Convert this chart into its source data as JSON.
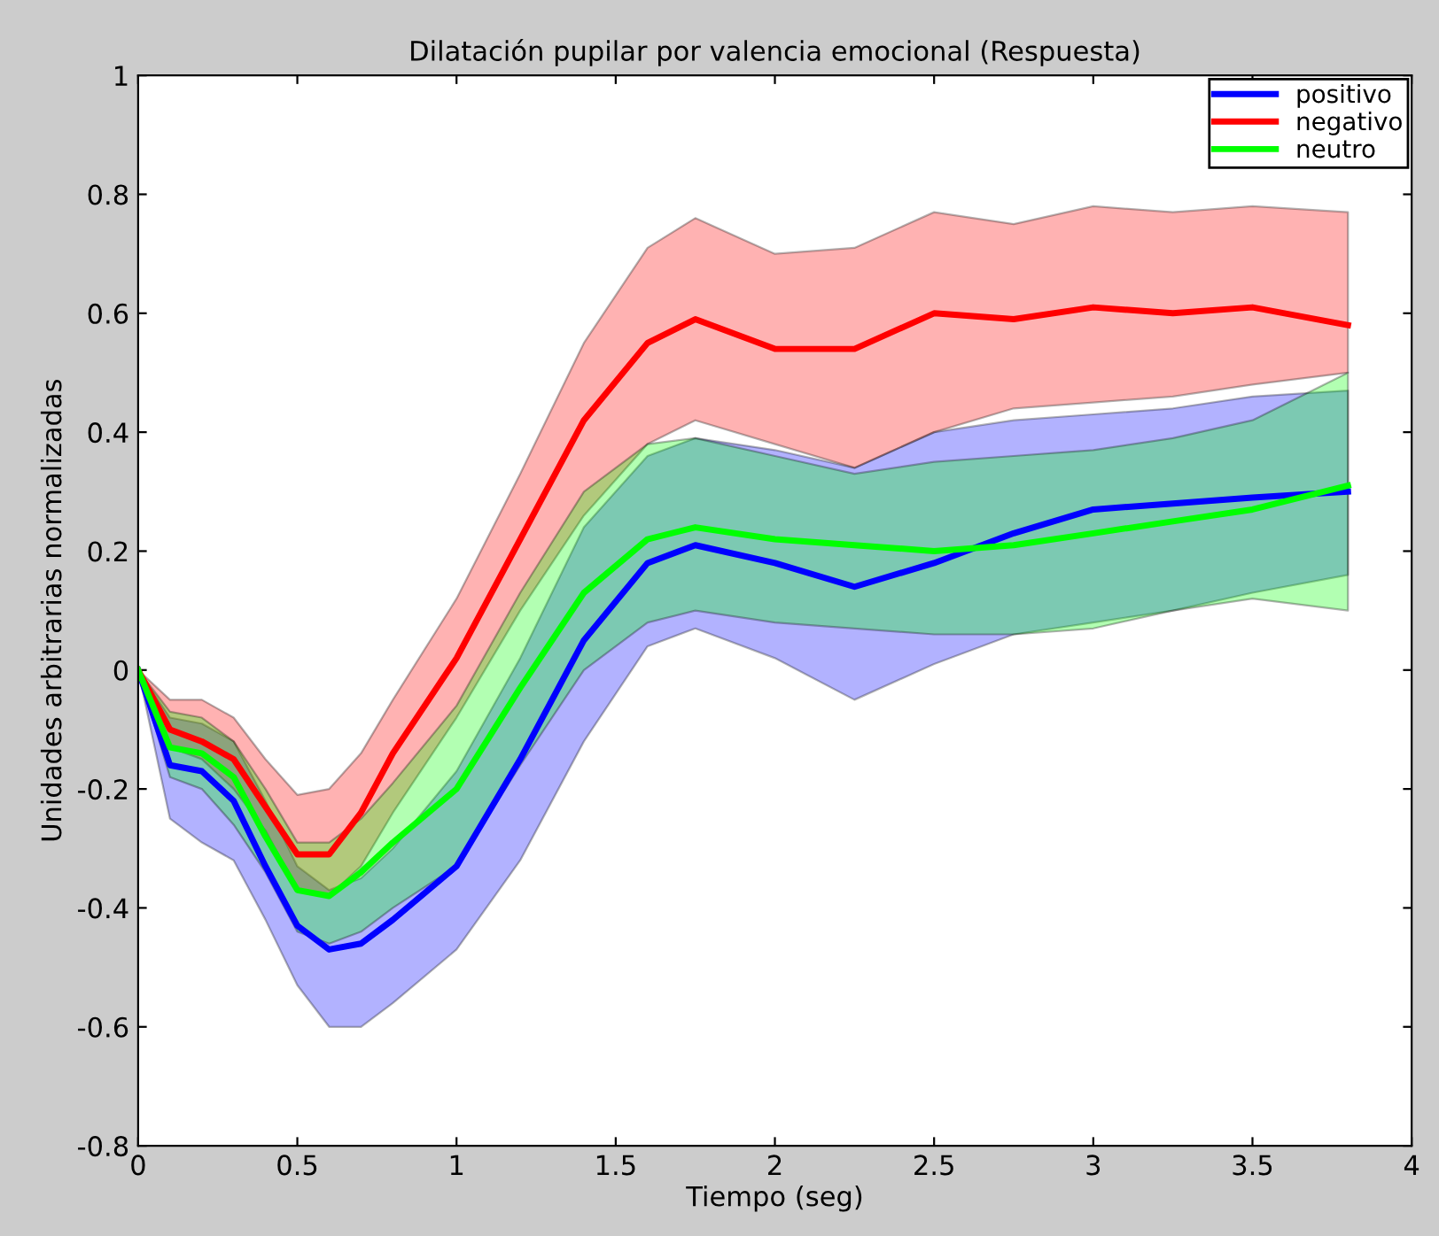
{
  "chart_data": {
    "type": "line",
    "title": "Dilatación pupilar por valencia emocional (Respuesta)",
    "xlabel": "Tiempo (seg)",
    "ylabel": "Unidades arbitrarias normalizadas",
    "x": [
      0,
      0.1,
      0.2,
      0.3,
      0.4,
      0.5,
      0.6,
      0.7,
      0.8,
      1.0,
      1.2,
      1.4,
      1.6,
      1.75,
      2.0,
      2.25,
      2.5,
      2.75,
      3.0,
      3.25,
      3.5,
      3.8
    ],
    "series": [
      {
        "name": "positivo",
        "color": "#0000ff",
        "values": [
          0,
          -0.16,
          -0.17,
          -0.22,
          -0.33,
          -0.43,
          -0.47,
          -0.46,
          -0.42,
          -0.33,
          -0.15,
          0.05,
          0.18,
          0.21,
          0.18,
          0.14,
          0.18,
          0.23,
          0.27,
          0.28,
          0.29,
          0.3
        ],
        "upper": [
          0,
          -0.08,
          -0.09,
          -0.12,
          -0.22,
          -0.33,
          -0.37,
          -0.35,
          -0.3,
          -0.17,
          0.02,
          0.24,
          0.36,
          0.39,
          0.37,
          0.34,
          0.4,
          0.42,
          0.43,
          0.44,
          0.46,
          0.47
        ],
        "lower": [
          0,
          -0.25,
          -0.29,
          -0.32,
          -0.42,
          -0.53,
          -0.6,
          -0.6,
          -0.56,
          -0.47,
          -0.32,
          -0.12,
          0.04,
          0.07,
          0.02,
          -0.05,
          0.01,
          0.06,
          0.08,
          0.1,
          0.13,
          0.16
        ]
      },
      {
        "name": "negativo",
        "color": "#ff0000",
        "values": [
          0,
          -0.1,
          -0.12,
          -0.15,
          -0.23,
          -0.31,
          -0.31,
          -0.24,
          -0.14,
          0.02,
          0.22,
          0.42,
          0.55,
          0.59,
          0.54,
          0.54,
          0.6,
          0.59,
          0.61,
          0.6,
          0.61,
          0.58
        ],
        "upper": [
          0,
          -0.05,
          -0.05,
          -0.08,
          -0.15,
          -0.21,
          -0.2,
          -0.14,
          -0.05,
          0.12,
          0.33,
          0.55,
          0.71,
          0.76,
          0.7,
          0.71,
          0.77,
          0.75,
          0.78,
          0.77,
          0.78,
          0.77
        ],
        "lower": [
          0,
          -0.13,
          -0.15,
          -0.2,
          -0.27,
          -0.37,
          -0.38,
          -0.33,
          -0.24,
          -0.08,
          0.1,
          0.26,
          0.38,
          0.42,
          0.38,
          0.34,
          0.4,
          0.44,
          0.45,
          0.46,
          0.48,
          0.5
        ]
      },
      {
        "name": "neutro",
        "color": "#00ff00",
        "values": [
          0,
          -0.13,
          -0.14,
          -0.18,
          -0.28,
          -0.37,
          -0.38,
          -0.34,
          -0.29,
          -0.2,
          -0.03,
          0.13,
          0.22,
          0.24,
          0.22,
          0.21,
          0.2,
          0.21,
          0.23,
          0.25,
          0.27,
          0.31
        ],
        "upper": [
          0,
          -0.07,
          -0.08,
          -0.12,
          -0.2,
          -0.29,
          -0.29,
          -0.25,
          -0.19,
          -0.06,
          0.13,
          0.3,
          0.38,
          0.39,
          0.36,
          0.33,
          0.35,
          0.36,
          0.37,
          0.39,
          0.42,
          0.5
        ],
        "lower": [
          0,
          -0.18,
          -0.2,
          -0.26,
          -0.34,
          -0.44,
          -0.46,
          -0.44,
          -0.4,
          -0.33,
          -0.16,
          0.0,
          0.08,
          0.1,
          0.08,
          0.07,
          0.06,
          0.06,
          0.07,
          0.1,
          0.12,
          0.1
        ]
      }
    ],
    "xlim": [
      0,
      4
    ],
    "xticks": [
      0,
      0.5,
      1,
      1.5,
      2,
      2.5,
      3,
      3.5,
      4
    ],
    "ylim": [
      -0.8,
      1
    ],
    "yticks": [
      -0.8,
      -0.6,
      -0.4,
      -0.2,
      0,
      0.2,
      0.4,
      0.6,
      0.8,
      1
    ],
    "grid": false,
    "legend": "top right",
    "marker": "none",
    "line_style": "solid"
  }
}
